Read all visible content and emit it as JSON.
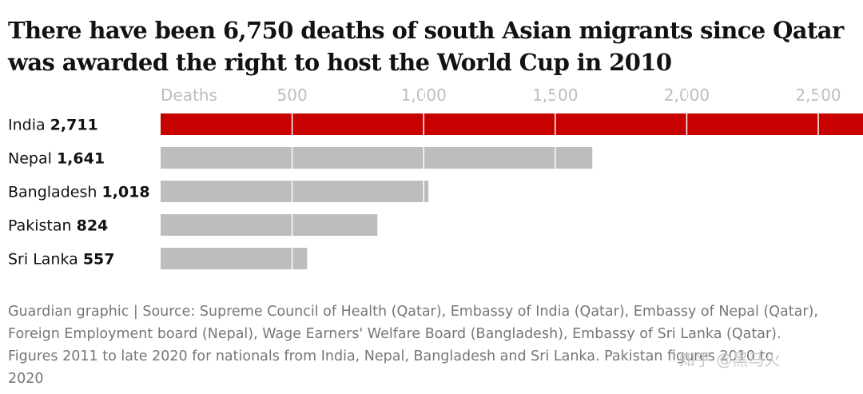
{
  "title": "There have been 6,750 deaths of south Asian migrants since Qatar was awarded the right to host the World Cup in 2010",
  "source_lines": [
    "Guardian graphic | Source: Supreme Council of Health (Qatar), Embassy of India (Qatar), Embassy of Nepal (Qatar),",
    "Foreign Employment board (Nepal), Wage Earners' Welfare Board (Bangladesh), Embassy of Sri Lanka (Qatar).",
    "Figures 2011 to late 2020 for nationals from India, Nepal, Bangladesh and Sri Lanka. Pakistan figures 2010 to",
    "2020"
  ],
  "watermark": "知乎 @黑马火",
  "colors": {
    "highlight": "#c70000",
    "bar": "#bdbdbd",
    "gridline": "#ffffff",
    "tick_text": "#bdbdbd",
    "source_text": "#767676"
  },
  "chart_data": {
    "type": "bar",
    "orientation": "horizontal",
    "title": "There have been 6,750 deaths of south Asian migrants since Qatar was awarded the right to host the World Cup in 2010",
    "xlabel": "Deaths",
    "ylabel": "",
    "xlim": [
      0,
      2670
    ],
    "ticks": [
      {
        "value": 0,
        "label": "Deaths"
      },
      {
        "value": 500,
        "label": "500"
      },
      {
        "value": 1000,
        "label": "1,000"
      },
      {
        "value": 1500,
        "label": "1,500"
      },
      {
        "value": 2000,
        "label": "2,000"
      },
      {
        "value": 2500,
        "label": "2,500"
      }
    ],
    "categories": [
      "India",
      "Nepal",
      "Bangladesh",
      "Pakistan",
      "Sri Lanka"
    ],
    "values": [
      2711,
      1641,
      1018,
      824,
      557
    ],
    "value_labels": [
      "2,711",
      "1,641",
      "1,018",
      "824",
      "557"
    ],
    "highlight": [
      "India"
    ],
    "grid": true,
    "legend": "none"
  }
}
